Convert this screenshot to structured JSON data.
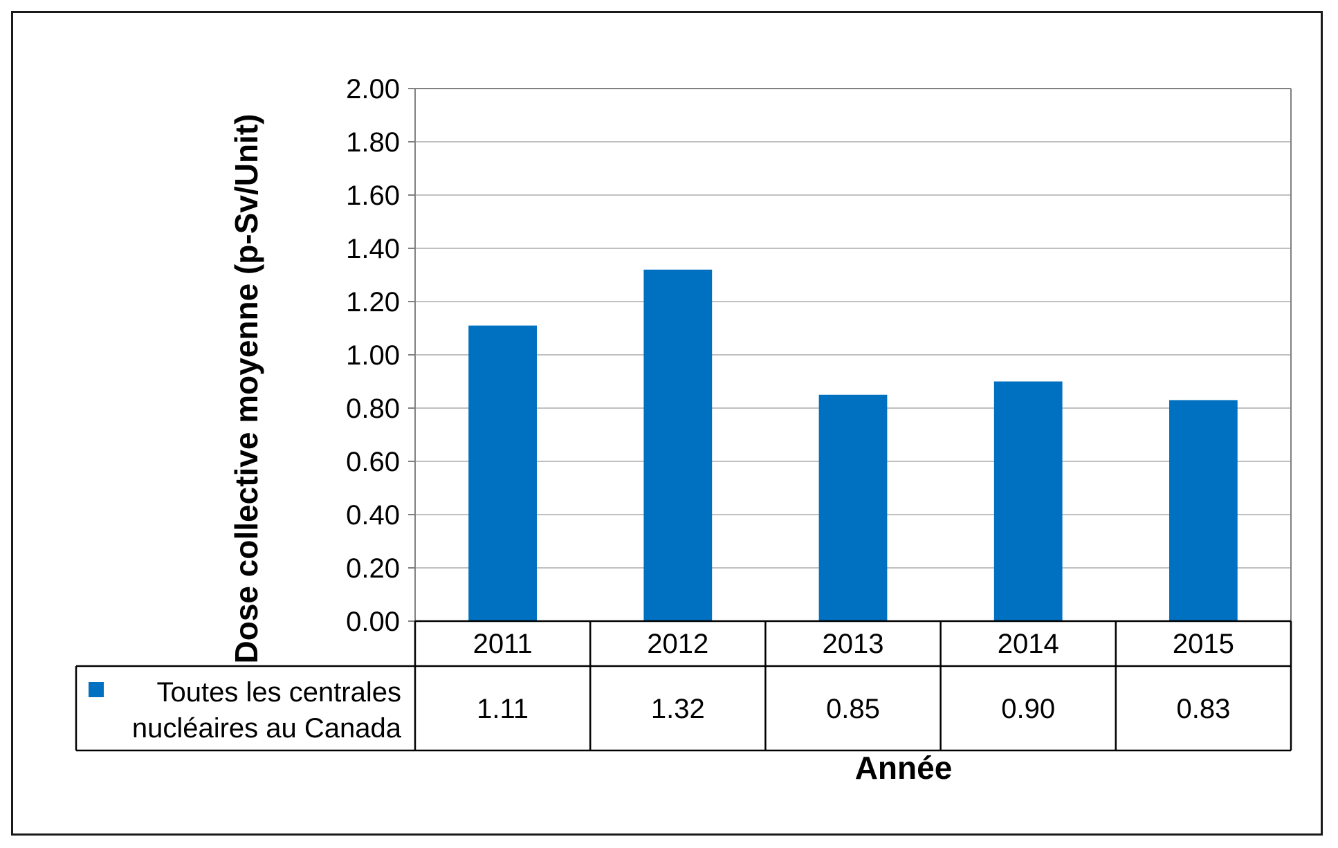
{
  "chart_data": {
    "type": "bar",
    "categories": [
      "2011",
      "2012",
      "2013",
      "2014",
      "2015"
    ],
    "series": [
      {
        "name": "Toutes les centrales nucléaires au Canada",
        "name_lines": [
          "Toutes les centrales",
          "nucléaires au Canada"
        ],
        "values": [
          1.11,
          1.32,
          0.85,
          0.9,
          0.83
        ],
        "value_labels": [
          "1.11",
          "1.32",
          "0.85",
          "0.90",
          "0.83"
        ],
        "color": "#0070C0"
      }
    ],
    "ylabel": "Dose collective moyenne (p-Sv/Unit)",
    "xlabel": "Année",
    "ylim": [
      0,
      2
    ],
    "yticks": [
      "0.00",
      "0.20",
      "0.40",
      "0.60",
      "0.80",
      "1.00",
      "1.20",
      "1.40",
      "1.60",
      "1.80",
      "2.00"
    ],
    "grid": true,
    "legend": "data-table",
    "colors": {
      "grid": "#c0c0c0",
      "axis": "#808080",
      "table_border": "#000000"
    }
  }
}
